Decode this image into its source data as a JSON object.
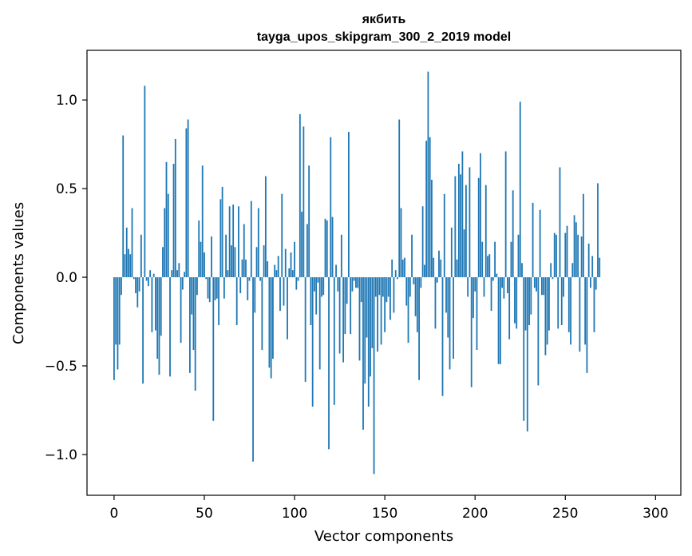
{
  "chart_data": {
    "type": "bar",
    "title_line1": "якбить",
    "title_line2": "tayga_upos_skipgram_300_2_2019 model",
    "xlabel": "Vector components",
    "ylabel": "Components values",
    "xlim": [
      -15,
      314
    ],
    "ylim": [
      -1.23,
      1.28
    ],
    "x_ticks": [
      0,
      50,
      100,
      150,
      200,
      250,
      300
    ],
    "y_ticks": [
      -1.0,
      -0.5,
      0.0,
      0.5,
      1.0
    ],
    "y_tick_labels": [
      "−1.0",
      "−0.5",
      "0.0",
      "0.5",
      "1.0"
    ],
    "bar_color": "#1f77b4",
    "values": [
      -0.58,
      -0.38,
      -0.52,
      -0.38,
      -0.1,
      0.8,
      0.13,
      0.28,
      0.16,
      0.13,
      0.39,
      -0.01,
      -0.09,
      -0.17,
      -0.08,
      0.24,
      -0.6,
      1.08,
      -0.02,
      -0.05,
      0.04,
      -0.31,
      0.02,
      -0.3,
      -0.46,
      -0.55,
      -0.33,
      0.17,
      0.39,
      0.65,
      0.47,
      -0.56,
      0.04,
      0.64,
      0.78,
      0.04,
      0.08,
      -0.37,
      -0.07,
      0.03,
      0.84,
      0.89,
      -0.54,
      -0.21,
      -0.41,
      -0.64,
      -0.1,
      0.32,
      0.2,
      0.63,
      0.14,
      -0.01,
      -0.12,
      -0.14,
      0.23,
      -0.81,
      -0.13,
      -0.12,
      -0.27,
      0.44,
      0.51,
      -0.12,
      0.24,
      0.04,
      0.4,
      0.18,
      0.41,
      0.17,
      -0.27,
      0.4,
      -0.09,
      0.1,
      0.3,
      0.1,
      -0.13,
      -0.02,
      0.43,
      -1.04,
      -0.2,
      0.17,
      0.39,
      -0.02,
      -0.41,
      0.18,
      0.57,
      0.09,
      -0.51,
      -0.57,
      -0.46,
      0.07,
      0.04,
      0.12,
      -0.19,
      0.47,
      -0.16,
      0.16,
      -0.35,
      0.05,
      0.14,
      0.04,
      0.2,
      -0.07,
      -0.02,
      0.92,
      0.37,
      0.85,
      -0.59,
      0.3,
      0.63,
      -0.27,
      -0.73,
      -0.08,
      -0.21,
      -0.03,
      -0.52,
      -0.11,
      -0.1,
      0.33,
      0.32,
      -0.97,
      0.79,
      0.34,
      -0.72,
      0.07,
      -0.08,
      -0.43,
      0.24,
      -0.48,
      -0.32,
      -0.15,
      0.82,
      -0.32,
      -0.08,
      -0.02,
      -0.06,
      -0.06,
      -0.47,
      -0.14,
      -0.86,
      -0.6,
      -0.34,
      -0.73,
      -0.56,
      -0.4,
      -1.11,
      -0.11,
      -0.42,
      -0.1,
      -0.38,
      -0.11,
      -0.31,
      -0.14,
      -0.11,
      -0.24,
      0.1,
      -0.2,
      0.04,
      -0.01,
      0.89,
      0.39,
      0.1,
      0.11,
      -0.16,
      -0.37,
      -0.11,
      0.24,
      -0.04,
      -0.22,
      -0.31,
      -0.58,
      -0.06,
      0.4,
      0.07,
      0.77,
      1.16,
      0.79,
      0.55,
      0.11,
      -0.29,
      -0.03,
      0.15,
      0.1,
      -0.67,
      0.47,
      -0.2,
      -0.34,
      -0.52,
      0.28,
      -0.46,
      0.57,
      0.1,
      0.64,
      0.58,
      0.71,
      0.27,
      0.52,
      -0.11,
      0.62,
      -0.62,
      -0.23,
      -0.08,
      -0.41,
      0.56,
      0.7,
      0.2,
      -0.11,
      0.52,
      0.12,
      0.13,
      -0.19,
      -0.02,
      0.2,
      0.02,
      -0.49,
      -0.49,
      -0.06,
      -0.12,
      0.71,
      -0.09,
      -0.35,
      0.2,
      0.49,
      -0.26,
      -0.29,
      0.24,
      0.99,
      0.08,
      -0.81,
      -0.3,
      -0.87,
      -0.27,
      -0.21,
      0.42,
      -0.06,
      -0.08,
      -0.61,
      0.38,
      -0.1,
      -0.1,
      -0.44,
      -0.38,
      -0.3,
      0.08,
      -0.01,
      0.25,
      0.24,
      -0.29,
      0.62,
      -0.27,
      -0.11,
      0.25,
      0.29,
      -0.31,
      -0.38,
      0.08,
      0.35,
      0.31,
      0.24,
      -0.42,
      0.23,
      0.47,
      -0.38,
      -0.54,
      0.19,
      -0.06,
      0.12,
      -0.31,
      -0.07,
      0.53,
      0.11
    ]
  }
}
